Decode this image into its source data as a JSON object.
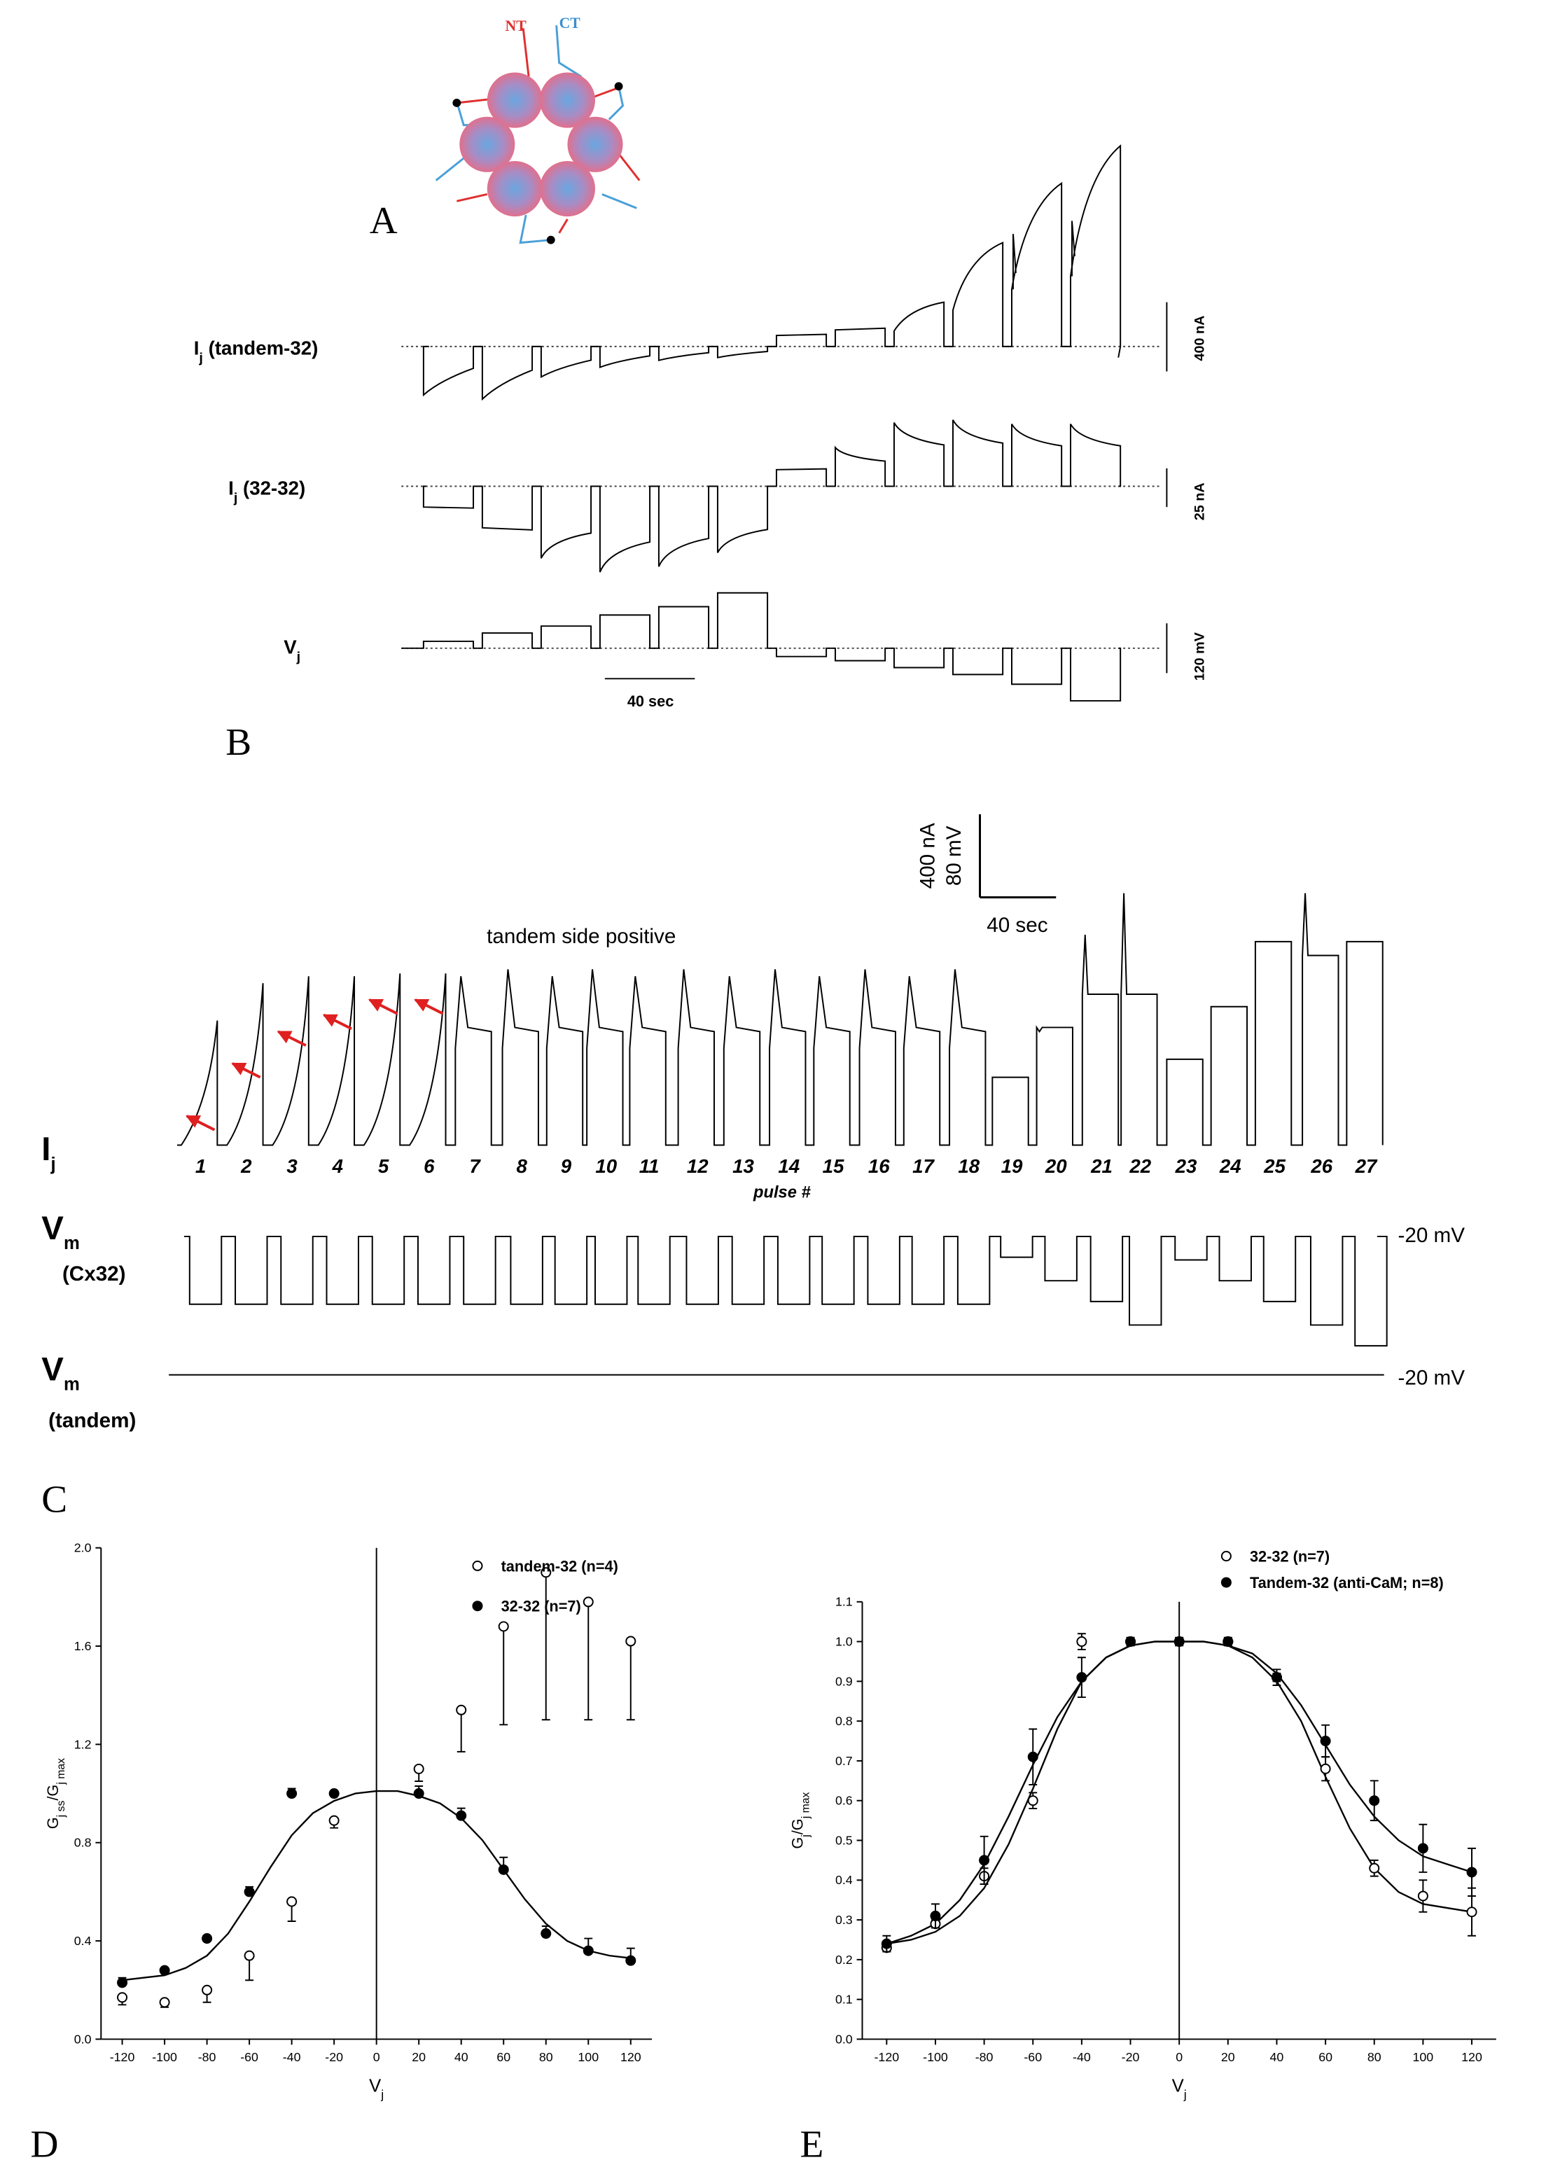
{
  "figure": {
    "A": {
      "label": "A",
      "nt": "NT",
      "ct": "CT"
    },
    "B": {
      "label": "B",
      "traces": [
        {
          "symbol": "I",
          "sub": "j",
          "rest": " (tandem-32)",
          "scale": "400 nA"
        },
        {
          "symbol": "I",
          "sub": "j",
          "rest": " (32-32)",
          "scale": "25 nA"
        },
        {
          "symbol": "V",
          "sub": "j",
          "scale": "120 mV"
        }
      ],
      "time_scale": "40 sec"
    },
    "C": {
      "label": "C",
      "annotation": "tandem side positive",
      "current_scale": "400 nA",
      "voltage_scale": "80 mV",
      "time_scale": "40 sec",
      "pulse_axis_label": "pulse #",
      "pulse_numbers": [
        1,
        2,
        3,
        4,
        5,
        6,
        7,
        8,
        9,
        10,
        11,
        12,
        13,
        14,
        15,
        16,
        17,
        18,
        19,
        20,
        21,
        22,
        23,
        24,
        25,
        26,
        27
      ],
      "traces": [
        {
          "symbol": "I",
          "sub": "j"
        },
        {
          "symbol": "V",
          "sub": "m",
          "rest": "(Cx32)",
          "level": "-20 mV"
        },
        {
          "symbol": "V",
          "sub": "m",
          "rest": "(tandem)",
          "level": "-20 mV"
        }
      ]
    }
  },
  "chart_data": [
    {
      "type": "scatter",
      "panel_label": "D",
      "xlabel": [
        {
          "text": "V"
        },
        {
          "text": "j",
          "sub": true
        }
      ],
      "ylabel": [
        {
          "text": "G"
        },
        {
          "text": "j ss",
          "sub": true
        },
        {
          "text": "/G"
        },
        {
          "text": "j max",
          "sub": true
        }
      ],
      "xlim": [
        -130,
        130
      ],
      "xticks": [
        -120,
        -100,
        -80,
        -60,
        -40,
        -20,
        0,
        20,
        40,
        60,
        80,
        100,
        120
      ],
      "ylim": [
        0,
        2
      ],
      "yticks": [
        {
          "value": 0,
          "label": "0.0"
        },
        0.4,
        0.8,
        1.2,
        1.6,
        {
          "value": 2,
          "label": "2.0"
        }
      ],
      "zero_line": true,
      "legend": "top-right",
      "x": [
        -120,
        -100,
        -80,
        -60,
        -40,
        -20,
        20,
        40,
        60,
        80,
        100,
        120
      ],
      "series": [
        {
          "name": "tandem-32 (n=4)",
          "marker": "open",
          "color": "#000000",
          "error_direction": "down",
          "values": [
            0.17,
            0.15,
            0.2,
            0.34,
            0.56,
            0.89,
            1.1,
            1.34,
            1.68,
            1.9,
            1.78,
            1.62
          ],
          "errors": [
            0.03,
            0.02,
            0.05,
            0.1,
            0.08,
            0.03,
            0.05,
            0.17,
            0.4,
            0.6,
            0.48,
            0.32
          ]
        },
        {
          "name": "32-32 (n=7)",
          "marker": "filled",
          "color": "#000000",
          "error_direction": "up",
          "values": [
            0.23,
            0.28,
            0.41,
            0.6,
            1.0,
            1.0,
            1.0,
            0.91,
            0.69,
            0.43,
            0.36,
            0.32
          ],
          "errors": [
            0.02,
            0.01,
            0.01,
            0.02,
            0.02,
            0.01,
            0.03,
            0.03,
            0.05,
            0.03,
            0.05,
            0.05
          ]
        }
      ],
      "fits": [
        {
          "x": [
            -120,
            -110,
            -100,
            -90,
            -80,
            -70,
            -60,
            -50,
            -40,
            -30,
            -20,
            -10,
            0,
            10,
            20,
            30,
            40,
            50,
            60,
            70,
            80,
            90,
            100,
            110,
            120
          ],
          "values": [
            0.24,
            0.25,
            0.26,
            0.29,
            0.34,
            0.43,
            0.56,
            0.7,
            0.83,
            0.92,
            0.97,
            1.0,
            1.01,
            1.01,
            0.99,
            0.96,
            0.9,
            0.81,
            0.69,
            0.57,
            0.47,
            0.4,
            0.36,
            0.34,
            0.33
          ]
        }
      ]
    },
    {
      "type": "scatter",
      "panel_label": "E",
      "xlabel": [
        {
          "text": "V"
        },
        {
          "text": "j",
          "sub": true
        }
      ],
      "ylabel": [
        {
          "text": "G"
        },
        {
          "text": "j",
          "sub": true
        },
        {
          "text": "/G"
        },
        {
          "text": "j max",
          "sub": true
        }
      ],
      "xlim": [
        -130,
        130
      ],
      "xticks": [
        -120,
        -100,
        -80,
        -60,
        -40,
        -20,
        0,
        20,
        40,
        60,
        80,
        100,
        120
      ],
      "ylim": [
        0,
        1.1
      ],
      "yticks": [
        {
          "value": 0,
          "label": "0.0"
        },
        0.1,
        0.2,
        0.3,
        0.4,
        0.5,
        0.6,
        0.7,
        0.8,
        0.9,
        {
          "value": 1,
          "label": "1.0"
        },
        1.1
      ],
      "zero_line": true,
      "legend": "top-right",
      "x": [
        -120,
        -100,
        -80,
        -60,
        -40,
        -20,
        0,
        20,
        40,
        60,
        80,
        100,
        120
      ],
      "series": [
        {
          "name": "32-32 (n=7)",
          "marker": "open",
          "color": "#000000",
          "error_direction": "both",
          "values": [
            0.23,
            0.29,
            0.41,
            0.6,
            1.0,
            1.0,
            1.0,
            1.0,
            0.91,
            0.68,
            0.43,
            0.36,
            0.32
          ],
          "errors": [
            0.01,
            0.01,
            0.02,
            0.02,
            0.02,
            0.01,
            0.01,
            0.01,
            0.01,
            0.03,
            0.02,
            0.04,
            0.06
          ]
        },
        {
          "name": "Tandem-32 (anti-CaM; n=8)",
          "marker": "filled",
          "color": "#000000",
          "error_direction": "both",
          "values": [
            0.24,
            0.31,
            0.45,
            0.71,
            0.91,
            1.0,
            1.0,
            1.0,
            0.91,
            0.75,
            0.6,
            0.48,
            0.42
          ],
          "errors": [
            0.02,
            0.03,
            0.06,
            0.07,
            0.05,
            0.01,
            0.01,
            0.01,
            0.02,
            0.04,
            0.05,
            0.06,
            0.06
          ]
        }
      ],
      "fits": [
        {
          "x": [
            -120,
            -110,
            -100,
            -90,
            -80,
            -70,
            -60,
            -50,
            -40,
            -30,
            -20,
            -10,
            0,
            10,
            20,
            30,
            40,
            50,
            60,
            70,
            80,
            90,
            100,
            110,
            120
          ],
          "values": [
            0.24,
            0.25,
            0.27,
            0.31,
            0.38,
            0.49,
            0.63,
            0.78,
            0.9,
            0.96,
            0.99,
            1.0,
            1.0,
            1.0,
            0.99,
            0.96,
            0.9,
            0.8,
            0.66,
            0.53,
            0.43,
            0.37,
            0.34,
            0.33,
            0.32
          ]
        },
        {
          "x": [
            -120,
            -110,
            -100,
            -90,
            -80,
            -70,
            -60,
            -50,
            -40,
            -30,
            -20,
            -10,
            0,
            10,
            20,
            30,
            40,
            50,
            60,
            70,
            80,
            90,
            100,
            110,
            120
          ],
          "values": [
            0.24,
            0.26,
            0.29,
            0.35,
            0.44,
            0.56,
            0.69,
            0.81,
            0.9,
            0.96,
            0.99,
            1.0,
            1.0,
            1.0,
            0.99,
            0.97,
            0.92,
            0.84,
            0.74,
            0.64,
            0.56,
            0.5,
            0.46,
            0.44,
            0.42
          ]
        }
      ]
    }
  ]
}
